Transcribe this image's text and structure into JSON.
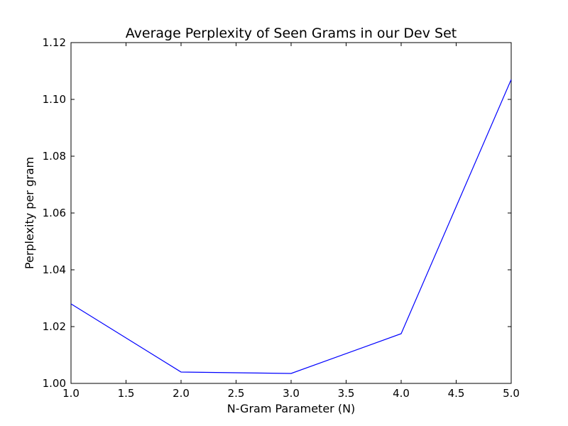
{
  "chart_data": {
    "type": "line",
    "title": "Average Perplexity of Seen Grams in our Dev Set",
    "xlabel": "N-Gram Parameter (N)",
    "ylabel": "Perplexity per gram",
    "xlim": [
      1.0,
      5.0
    ],
    "ylim": [
      1.0,
      1.12
    ],
    "xticks": [
      "1.0",
      "1.5",
      "2.0",
      "2.5",
      "3.0",
      "3.5",
      "4.0",
      "4.5",
      "5.0"
    ],
    "yticks": [
      "1.00",
      "1.02",
      "1.04",
      "1.06",
      "1.08",
      "1.10",
      "1.12"
    ],
    "grid": false,
    "line_color": "#0000ff",
    "series": [
      {
        "x": [
          1,
          2,
          3,
          4,
          5
        ],
        "values": [
          1.028,
          1.004,
          1.0035,
          1.0175,
          1.107
        ]
      }
    ]
  }
}
